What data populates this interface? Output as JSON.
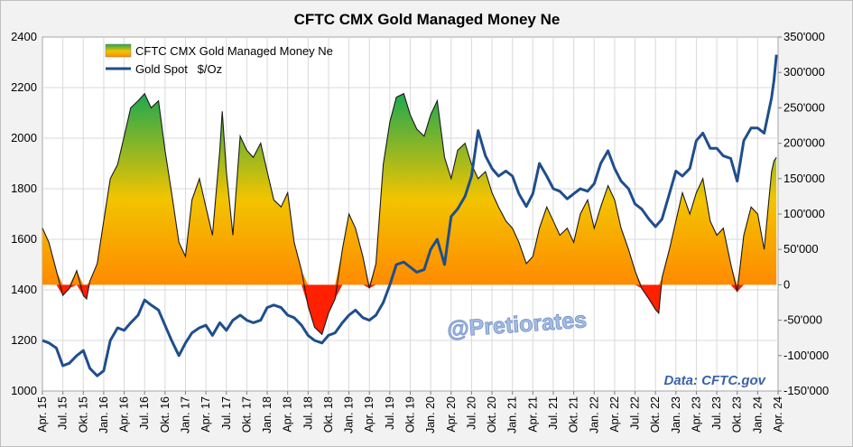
{
  "chart_data": {
    "type": "area",
    "title": "CFTC CMX Gold Managed Money Ne",
    "watermark": "@Pretiorates",
    "source_note": "Data: CFTC.gov",
    "left_axis": {
      "ylim": [
        1000,
        2400
      ],
      "ticks": [
        "1000",
        "1200",
        "1400",
        "1600",
        "1800",
        "2000",
        "2200",
        "2400"
      ]
    },
    "right_axis": {
      "ylim": [
        -150000,
        350000
      ],
      "ticks": [
        "-150'000",
        "-100'000",
        "-50'000",
        "0",
        "50'000",
        "100'000",
        "150'000",
        "200'000",
        "250'000",
        "300'000",
        "350'000"
      ]
    },
    "x_axis": {
      "range": [
        2015.25,
        2024.25
      ],
      "ticks": [
        "Apr. 15",
        "Jul. 15",
        "Okt. 15",
        "Jan. 16",
        "Apr. 16",
        "Jul. 16",
        "Okt. 16",
        "Jan. 17",
        "Apr. 17",
        "Jul. 17",
        "Okt. 17",
        "Jan. 18",
        "Apr. 18",
        "Jul. 18",
        "Okt. 18",
        "Jan. 19",
        "Apr. 19",
        "Jul. 19",
        "Okt. 19",
        "Jan. 20",
        "Apr. 20",
        "Jul. 20",
        "Okt. 20",
        "Jan. 21",
        "Apr. 21",
        "Jul. 21",
        "Okt. 21",
        "Jan. 22",
        "Apr. 22",
        "Jul. 22",
        "Okt. 22",
        "Jan. 23",
        "Apr. 23",
        "Jul. 23",
        "Okt. 23",
        "Jan. 24",
        "Apr. 24"
      ]
    },
    "grid": true,
    "legend_position": "top-left",
    "series": [
      {
        "name": "CFTC CMX Gold Managed Money Ne",
        "axis": "right",
        "style": "area-gradient",
        "colors": {
          "top": "#1fa84f",
          "mid": "#f2c400",
          "bottom": "#ff8a00",
          "negative": "#ff2000"
        },
        "points": [
          [
            2015.25,
            80000
          ],
          [
            2015.33,
            60000
          ],
          [
            2015.42,
            20000
          ],
          [
            2015.5,
            -15000
          ],
          [
            2015.58,
            -5000
          ],
          [
            2015.67,
            20000
          ],
          [
            2015.75,
            -15000
          ],
          [
            2015.79,
            -20000
          ],
          [
            2015.83,
            5000
          ],
          [
            2015.92,
            30000
          ],
          [
            2016.0,
            90000
          ],
          [
            2016.08,
            150000
          ],
          [
            2016.17,
            170000
          ],
          [
            2016.25,
            210000
          ],
          [
            2016.33,
            250000
          ],
          [
            2016.42,
            260000
          ],
          [
            2016.5,
            270000
          ],
          [
            2016.58,
            250000
          ],
          [
            2016.67,
            260000
          ],
          [
            2016.75,
            190000
          ],
          [
            2016.83,
            130000
          ],
          [
            2016.92,
            60000
          ],
          [
            2017.0,
            40000
          ],
          [
            2017.08,
            120000
          ],
          [
            2017.17,
            150000
          ],
          [
            2017.25,
            110000
          ],
          [
            2017.33,
            70000
          ],
          [
            2017.42,
            190000
          ],
          [
            2017.45,
            245000
          ],
          [
            2017.5,
            160000
          ],
          [
            2017.58,
            70000
          ],
          [
            2017.67,
            210000
          ],
          [
            2017.75,
            190000
          ],
          [
            2017.83,
            180000
          ],
          [
            2017.92,
            200000
          ],
          [
            2018.0,
            160000
          ],
          [
            2018.08,
            120000
          ],
          [
            2018.17,
            110000
          ],
          [
            2018.25,
            130000
          ],
          [
            2018.33,
            60000
          ],
          [
            2018.42,
            20000
          ],
          [
            2018.5,
            -30000
          ],
          [
            2018.58,
            -60000
          ],
          [
            2018.67,
            -70000
          ],
          [
            2018.75,
            -40000
          ],
          [
            2018.83,
            -20000
          ],
          [
            2018.92,
            50000
          ],
          [
            2019.0,
            100000
          ],
          [
            2019.08,
            80000
          ],
          [
            2019.17,
            40000
          ],
          [
            2019.25,
            -5000
          ],
          [
            2019.33,
            30000
          ],
          [
            2019.42,
            170000
          ],
          [
            2019.5,
            230000
          ],
          [
            2019.58,
            265000
          ],
          [
            2019.67,
            270000
          ],
          [
            2019.75,
            240000
          ],
          [
            2019.83,
            220000
          ],
          [
            2019.92,
            210000
          ],
          [
            2020.0,
            240000
          ],
          [
            2020.08,
            260000
          ],
          [
            2020.17,
            180000
          ],
          [
            2020.25,
            150000
          ],
          [
            2020.33,
            190000
          ],
          [
            2020.42,
            200000
          ],
          [
            2020.5,
            170000
          ],
          [
            2020.58,
            150000
          ],
          [
            2020.67,
            160000
          ],
          [
            2020.75,
            130000
          ],
          [
            2020.83,
            110000
          ],
          [
            2020.92,
            90000
          ],
          [
            2021.0,
            80000
          ],
          [
            2021.08,
            60000
          ],
          [
            2021.17,
            30000
          ],
          [
            2021.25,
            40000
          ],
          [
            2021.33,
            80000
          ],
          [
            2021.42,
            110000
          ],
          [
            2021.5,
            90000
          ],
          [
            2021.58,
            70000
          ],
          [
            2021.67,
            80000
          ],
          [
            2021.75,
            60000
          ],
          [
            2021.83,
            100000
          ],
          [
            2021.92,
            120000
          ],
          [
            2022.0,
            80000
          ],
          [
            2022.08,
            110000
          ],
          [
            2022.17,
            140000
          ],
          [
            2022.25,
            120000
          ],
          [
            2022.33,
            80000
          ],
          [
            2022.42,
            50000
          ],
          [
            2022.5,
            20000
          ],
          [
            2022.58,
            -5000
          ],
          [
            2022.67,
            -20000
          ],
          [
            2022.75,
            -35000
          ],
          [
            2022.79,
            -40000
          ],
          [
            2022.83,
            10000
          ],
          [
            2022.92,
            50000
          ],
          [
            2023.0,
            90000
          ],
          [
            2023.08,
            130000
          ],
          [
            2023.17,
            100000
          ],
          [
            2023.25,
            130000
          ],
          [
            2023.33,
            150000
          ],
          [
            2023.42,
            90000
          ],
          [
            2023.5,
            70000
          ],
          [
            2023.58,
            80000
          ],
          [
            2023.67,
            30000
          ],
          [
            2023.75,
            -10000
          ],
          [
            2023.83,
            70000
          ],
          [
            2023.92,
            110000
          ],
          [
            2024.0,
            100000
          ],
          [
            2024.08,
            50000
          ],
          [
            2024.17,
            160000
          ],
          [
            2024.2,
            175000
          ],
          [
            2024.23,
            180000
          ]
        ]
      },
      {
        "name": "Gold Spot   $/Oz",
        "axis": "left",
        "style": "line",
        "color": "#1f4e8c",
        "points": [
          [
            2015.25,
            1200
          ],
          [
            2015.33,
            1190
          ],
          [
            2015.42,
            1170
          ],
          [
            2015.5,
            1100
          ],
          [
            2015.58,
            1110
          ],
          [
            2015.67,
            1140
          ],
          [
            2015.75,
            1160
          ],
          [
            2015.83,
            1090
          ],
          [
            2015.92,
            1060
          ],
          [
            2016.0,
            1080
          ],
          [
            2016.08,
            1200
          ],
          [
            2016.17,
            1250
          ],
          [
            2016.25,
            1240
          ],
          [
            2016.33,
            1270
          ],
          [
            2016.42,
            1300
          ],
          [
            2016.5,
            1360
          ],
          [
            2016.58,
            1340
          ],
          [
            2016.67,
            1320
          ],
          [
            2016.75,
            1260
          ],
          [
            2016.83,
            1200
          ],
          [
            2016.92,
            1140
          ],
          [
            2017.0,
            1190
          ],
          [
            2017.08,
            1230
          ],
          [
            2017.17,
            1250
          ],
          [
            2017.25,
            1260
          ],
          [
            2017.33,
            1220
          ],
          [
            2017.42,
            1270
          ],
          [
            2017.5,
            1240
          ],
          [
            2017.58,
            1280
          ],
          [
            2017.67,
            1300
          ],
          [
            2017.75,
            1280
          ],
          [
            2017.83,
            1270
          ],
          [
            2017.92,
            1280
          ],
          [
            2018.0,
            1330
          ],
          [
            2018.08,
            1340
          ],
          [
            2018.17,
            1330
          ],
          [
            2018.25,
            1300
          ],
          [
            2018.33,
            1290
          ],
          [
            2018.42,
            1260
          ],
          [
            2018.5,
            1220
          ],
          [
            2018.58,
            1200
          ],
          [
            2018.67,
            1190
          ],
          [
            2018.75,
            1220
          ],
          [
            2018.83,
            1230
          ],
          [
            2018.92,
            1270
          ],
          [
            2019.0,
            1300
          ],
          [
            2019.08,
            1320
          ],
          [
            2019.17,
            1290
          ],
          [
            2019.25,
            1280
          ],
          [
            2019.33,
            1300
          ],
          [
            2019.42,
            1350
          ],
          [
            2019.5,
            1420
          ],
          [
            2019.58,
            1500
          ],
          [
            2019.67,
            1510
          ],
          [
            2019.75,
            1490
          ],
          [
            2019.83,
            1470
          ],
          [
            2019.92,
            1480
          ],
          [
            2020.0,
            1560
          ],
          [
            2020.08,
            1600
          ],
          [
            2020.17,
            1500
          ],
          [
            2020.25,
            1690
          ],
          [
            2020.33,
            1720
          ],
          [
            2020.42,
            1770
          ],
          [
            2020.5,
            1850
          ],
          [
            2020.58,
            2030
          ],
          [
            2020.67,
            1930
          ],
          [
            2020.75,
            1880
          ],
          [
            2020.83,
            1850
          ],
          [
            2020.92,
            1870
          ],
          [
            2021.0,
            1850
          ],
          [
            2021.08,
            1780
          ],
          [
            2021.17,
            1730
          ],
          [
            2021.25,
            1780
          ],
          [
            2021.33,
            1900
          ],
          [
            2021.42,
            1850
          ],
          [
            2021.5,
            1800
          ],
          [
            2021.58,
            1790
          ],
          [
            2021.67,
            1760
          ],
          [
            2021.75,
            1780
          ],
          [
            2021.83,
            1800
          ],
          [
            2021.92,
            1790
          ],
          [
            2022.0,
            1820
          ],
          [
            2022.08,
            1900
          ],
          [
            2022.17,
            1950
          ],
          [
            2022.25,
            1880
          ],
          [
            2022.33,
            1830
          ],
          [
            2022.42,
            1800
          ],
          [
            2022.5,
            1740
          ],
          [
            2022.58,
            1720
          ],
          [
            2022.67,
            1680
          ],
          [
            2022.75,
            1650
          ],
          [
            2022.83,
            1680
          ],
          [
            2022.92,
            1780
          ],
          [
            2023.0,
            1870
          ],
          [
            2023.08,
            1850
          ],
          [
            2023.17,
            1880
          ],
          [
            2023.25,
            1990
          ],
          [
            2023.33,
            2020
          ],
          [
            2023.42,
            1960
          ],
          [
            2023.5,
            1960
          ],
          [
            2023.58,
            1930
          ],
          [
            2023.67,
            1920
          ],
          [
            2023.75,
            1830
          ],
          [
            2023.83,
            1990
          ],
          [
            2023.92,
            2040
          ],
          [
            2024.0,
            2040
          ],
          [
            2024.08,
            2020
          ],
          [
            2024.17,
            2160
          ],
          [
            2024.2,
            2230
          ],
          [
            2024.23,
            2330
          ]
        ]
      }
    ]
  }
}
